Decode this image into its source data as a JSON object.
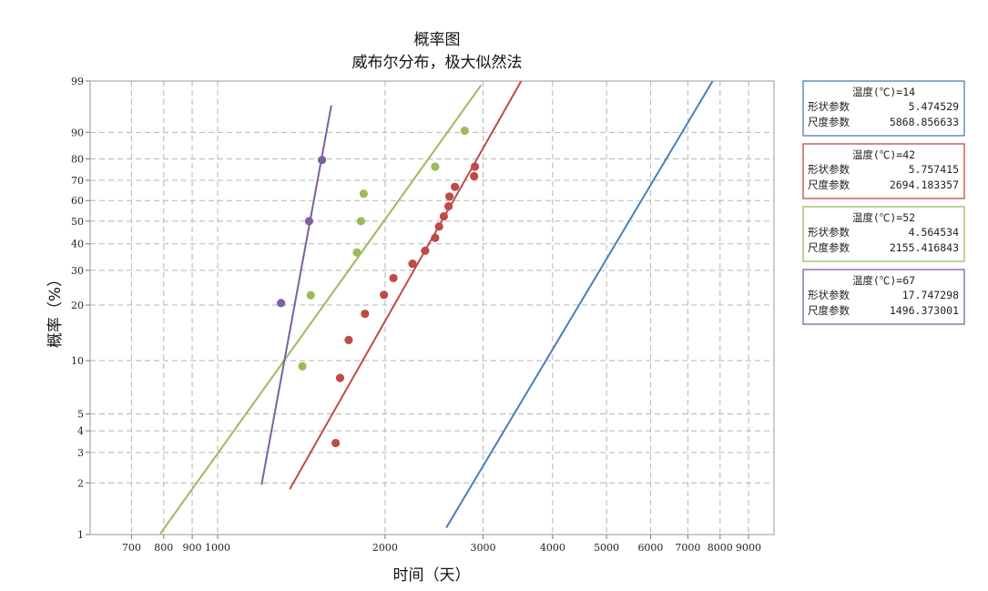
{
  "chart_data": {
    "type": "scatter",
    "title": "概率图",
    "subtitle": "威布尔分布，极大似然法",
    "xlabel": "时间（天）",
    "ylabel": "概率（%）",
    "x_scale": "log",
    "y_scale": "weibull",
    "xlim": [
      590,
      10000
    ],
    "ylim": [
      1,
      99
    ],
    "grid": true,
    "legend_position": "right",
    "x_ticks": [
      {
        "value": 700,
        "label": "700"
      },
      {
        "value": 800,
        "label": "800"
      },
      {
        "value": 900,
        "label": "900"
      },
      {
        "value": 1000,
        "label": "1000"
      },
      {
        "value": 2000,
        "label": "2000"
      },
      {
        "value": 3000,
        "label": "3000"
      },
      {
        "value": 4000,
        "label": "4000"
      },
      {
        "value": 5000,
        "label": "5000"
      },
      {
        "value": 6000,
        "label": "6000"
      },
      {
        "value": 7000,
        "label": "7000"
      },
      {
        "value": 8000,
        "label": "8000"
      },
      {
        "value": 9000,
        "label": "9000"
      }
    ],
    "y_ticks": [
      {
        "value": 1,
        "label": "1"
      },
      {
        "value": 2,
        "label": "2"
      },
      {
        "value": 3,
        "label": "3"
      },
      {
        "value": 4,
        "label": "4"
      },
      {
        "value": 5,
        "label": "5"
      },
      {
        "value": 10,
        "label": "10"
      },
      {
        "value": 20,
        "label": "20"
      },
      {
        "value": 30,
        "label": "30"
      },
      {
        "value": 40,
        "label": "40"
      },
      {
        "value": 50,
        "label": "50"
      },
      {
        "value": 60,
        "label": "60"
      },
      {
        "value": 70,
        "label": "70"
      },
      {
        "value": 80,
        "label": "80"
      },
      {
        "value": 90,
        "label": "90"
      },
      {
        "value": 99,
        "label": "99"
      }
    ],
    "series": [
      {
        "legend_title": "温度(℃)=14",
        "shape_label": "形状参数",
        "shape": "5.474529",
        "scale_label": "尺度参数",
        "scale": "5868.856633",
        "color": "#4a7ebb",
        "fit_range": [
          2580,
          7900
        ],
        "points": []
      },
      {
        "legend_title": "温度(℃)=42",
        "shape_label": "形状参数",
        "shape": "5.757415",
        "scale_label": "尺度参数",
        "scale": "2694.183357",
        "color": "#be4b48",
        "fit_range": [
          1350,
          3560
        ],
        "points": [
          [
            1630,
            3.4
          ],
          [
            1660,
            8.0
          ],
          [
            1720,
            13.0
          ],
          [
            1840,
            18.0
          ],
          [
            1990,
            22.6
          ],
          [
            2070,
            27.5
          ],
          [
            2240,
            32.3
          ],
          [
            2360,
            37.2
          ],
          [
            2460,
            42.5
          ],
          [
            2500,
            47.5
          ],
          [
            2550,
            52.3
          ],
          [
            2600,
            57.2
          ],
          [
            2610,
            62.0
          ],
          [
            2670,
            66.8
          ],
          [
            2890,
            72.0
          ],
          [
            2900,
            76.5
          ]
        ]
      },
      {
        "legend_title": "温度(℃)=52",
        "shape_label": "形状参数",
        "shape": "4.564534",
        "scale_label": "尺度参数",
        "scale": "2155.416843",
        "color": "#9bbb59",
        "fit_range": [
          790,
          2970
        ],
        "points": [
          [
            1420,
            9.3
          ],
          [
            1470,
            22.5
          ],
          [
            1780,
            36.5
          ],
          [
            1810,
            50.0
          ],
          [
            1830,
            63.4
          ],
          [
            2460,
            76.5
          ],
          [
            2780,
            90.5
          ]
        ]
      },
      {
        "legend_title": "温度(℃)=67",
        "shape_label": "形状参数",
        "shape": "17.747298",
        "scale_label": "尺度参数",
        "scale": "1496.373001",
        "color": "#7f5fa3",
        "fit_range": [
          1200,
          1600
        ],
        "points": [
          [
            1300,
            20.5
          ],
          [
            1460,
            50.0
          ],
          [
            1540,
            79.5
          ]
        ]
      }
    ]
  }
}
